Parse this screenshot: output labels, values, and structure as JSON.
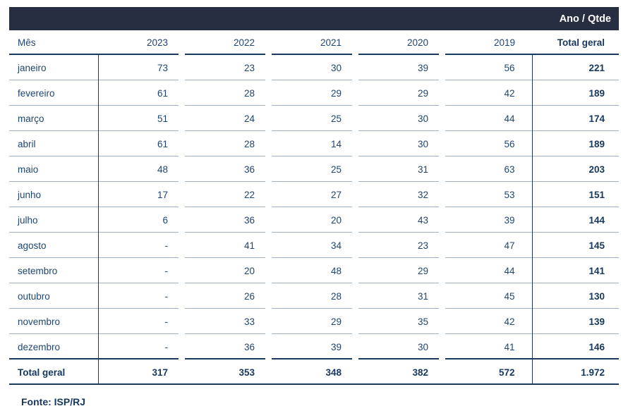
{
  "chart_data": {
    "type": "table",
    "corner_label": "Ano / Qtde",
    "row_dimension": "Mês",
    "column_dimension_values": [
      "2023",
      "2022",
      "2021",
      "2020",
      "2019"
    ],
    "total_column_label": "Total geral",
    "missing_value_marker": "-",
    "rows": [
      {
        "mes": "janeiro",
        "values": [
          "73",
          "23",
          "30",
          "39",
          "56"
        ],
        "total": "221"
      },
      {
        "mes": "fevereiro",
        "values": [
          "61",
          "28",
          "29",
          "29",
          "42"
        ],
        "total": "189"
      },
      {
        "mes": "março",
        "values": [
          "51",
          "24",
          "25",
          "30",
          "44"
        ],
        "total": "174"
      },
      {
        "mes": "abril",
        "values": [
          "61",
          "28",
          "14",
          "30",
          "56"
        ],
        "total": "189"
      },
      {
        "mes": "maio",
        "values": [
          "48",
          "36",
          "25",
          "31",
          "63"
        ],
        "total": "203"
      },
      {
        "mes": "junho",
        "values": [
          "17",
          "22",
          "27",
          "32",
          "53"
        ],
        "total": "151"
      },
      {
        "mes": "julho",
        "values": [
          "6",
          "36",
          "20",
          "43",
          "39"
        ],
        "total": "144"
      },
      {
        "mes": "agosto",
        "values": [
          "-",
          "41",
          "34",
          "23",
          "47"
        ],
        "total": "145"
      },
      {
        "mes": "setembro",
        "values": [
          "-",
          "20",
          "48",
          "29",
          "44"
        ],
        "total": "141"
      },
      {
        "mes": "outubro",
        "values": [
          "-",
          "26",
          "28",
          "31",
          "45"
        ],
        "total": "130"
      },
      {
        "mes": "novembro",
        "values": [
          "-",
          "33",
          "29",
          "35",
          "42"
        ],
        "total": "139"
      },
      {
        "mes": "dezembro",
        "values": [
          "-",
          "36",
          "39",
          "30",
          "41"
        ],
        "total": "146"
      }
    ],
    "total_row": {
      "label": "Total geral",
      "values": [
        "317",
        "353",
        "348",
        "382",
        "572"
      ],
      "total": "1.972"
    }
  },
  "footer": {
    "source": "Fonte: ISP/RJ"
  },
  "colors": {
    "banner_bg": "#282e42",
    "banner_fg": "#ffffff",
    "text": "#1f4571",
    "text_strong": "#17375e",
    "line_navy": "#1b3b5d",
    "line_gray": "#9fb0c2",
    "background": "#ffffff"
  }
}
